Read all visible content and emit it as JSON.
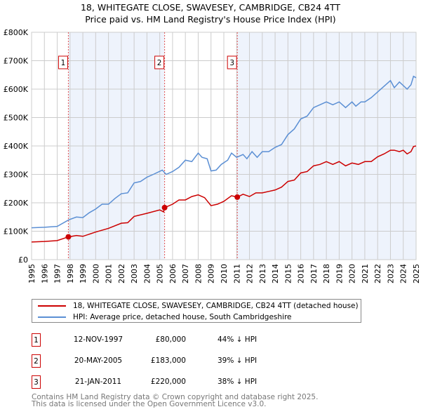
{
  "title_line1": "18, WHITEGATE CLOSE, SWAVESEY, CAMBRIDGE, CB24 4TT",
  "title_line2": "Price paid vs. HM Land Registry's House Price Index (HPI)",
  "chart_data": {
    "type": "line",
    "title": "18, WHITEGATE CLOSE, SWAVESEY, CAMBRIDGE, CB24 4TT - Price paid vs. HM Land Registry's House Price Index (HPI)",
    "xlim": [
      1995,
      2025
    ],
    "ylim": [
      0,
      800000
    ],
    "x_ticks": [
      "1995",
      "1996",
      "1997",
      "1998",
      "1999",
      "2000",
      "2001",
      "2002",
      "2003",
      "2004",
      "2005",
      "2006",
      "2007",
      "2008",
      "2009",
      "2010",
      "2011",
      "2012",
      "2013",
      "2014",
      "2015",
      "2016",
      "2017",
      "2018",
      "2019",
      "2020",
      "2021",
      "2022",
      "2023",
      "2024",
      "2025"
    ],
    "y_ticks": [
      {
        "v": 0,
        "label": "£0"
      },
      {
        "v": 100000,
        "label": "£100K"
      },
      {
        "v": 200000,
        "label": "£200K"
      },
      {
        "v": 300000,
        "label": "£300K"
      },
      {
        "v": 400000,
        "label": "£400K"
      },
      {
        "v": 500000,
        "label": "£500K"
      },
      {
        "v": 600000,
        "label": "£600K"
      },
      {
        "v": 700000,
        "label": "£700K"
      },
      {
        "v": 800000,
        "label": "£800K"
      }
    ],
    "grid": true,
    "series": [
      {
        "name": "18, WHITEGATE CLOSE, SWAVESEY, CAMBRIDGE, CB24 4TT (detached house)",
        "color": "#cc0000",
        "x": [
          1995,
          1996,
          1997,
          1997.87,
          1998.5,
          1999,
          2000,
          2001,
          2002,
          2002.5,
          2003,
          2004,
          2005,
          2005.3,
          2005.38,
          2006,
          2006.5,
          2007,
          2007.5,
          2008,
          2008.5,
          2009,
          2009.5,
          2010,
          2010.6,
          2011.05,
          2011.5,
          2012,
          2012.5,
          2013,
          2013.5,
          2014,
          2014.5,
          2015,
          2015.5,
          2016,
          2016.5,
          2017,
          2017.5,
          2018,
          2018.5,
          2019,
          2019.5,
          2020,
          2020.5,
          2021,
          2021.5,
          2022,
          2022.5,
          2023,
          2023.3,
          2023.7,
          2024,
          2024.3,
          2024.6,
          2024.8,
          2025
        ],
        "y": [
          62000,
          64000,
          67000,
          80000,
          85000,
          82000,
          97000,
          110000,
          128000,
          130000,
          152000,
          163000,
          175000,
          168000,
          183000,
          195000,
          210000,
          210000,
          222000,
          228000,
          218000,
          190000,
          195000,
          205000,
          225000,
          220000,
          230000,
          222000,
          235000,
          235000,
          240000,
          245000,
          255000,
          275000,
          280000,
          305000,
          310000,
          330000,
          335000,
          345000,
          335000,
          345000,
          330000,
          340000,
          335000,
          345000,
          345000,
          362000,
          372000,
          385000,
          385000,
          380000,
          385000,
          372000,
          380000,
          398000,
          400000
        ]
      },
      {
        "name": "HPI: Average price, detached house, South Cambridgeshire",
        "color": "#5b8fd4",
        "x": [
          1995,
          1996,
          1997,
          1997.9,
          1998.5,
          1999,
          1999.5,
          2000,
          2000.5,
          2001,
          2001.5,
          2002,
          2002.5,
          2003,
          2003.5,
          2004,
          2004.5,
          2005.2,
          2005.5,
          2006,
          2006.5,
          2007,
          2007.5,
          2008,
          2008.3,
          2008.7,
          2009,
          2009.4,
          2009.8,
          2010.3,
          2010.6,
          2011,
          2011.5,
          2011.8,
          2012.2,
          2012.6,
          2013,
          2013.5,
          2014,
          2014.5,
          2015,
          2015.5,
          2016,
          2016.5,
          2017,
          2017.5,
          2018,
          2018.5,
          2019,
          2019.5,
          2020,
          2020.3,
          2020.7,
          2021,
          2021.5,
          2022,
          2022.5,
          2023,
          2023.3,
          2023.7,
          2024.3,
          2024.6,
          2024.8,
          2025
        ],
        "y": [
          112000,
          114000,
          117000,
          140000,
          150000,
          148000,
          165000,
          178000,
          195000,
          195000,
          215000,
          232000,
          235000,
          270000,
          275000,
          290000,
          300000,
          315000,
          300000,
          310000,
          325000,
          350000,
          345000,
          375000,
          360000,
          355000,
          312000,
          315000,
          335000,
          350000,
          375000,
          360000,
          370000,
          355000,
          380000,
          360000,
          380000,
          380000,
          395000,
          405000,
          440000,
          460000,
          495000,
          505000,
          535000,
          545000,
          555000,
          545000,
          555000,
          535000,
          555000,
          540000,
          555000,
          555000,
          570000,
          590000,
          610000,
          630000,
          605000,
          625000,
          600000,
          615000,
          645000,
          640000
        ]
      }
    ],
    "sales": [
      {
        "id": "1",
        "x": 1997.87,
        "y": 80000,
        "date": "12-NOV-1997",
        "price": "£80,000",
        "hpi": "44% ↓ HPI"
      },
      {
        "id": "2",
        "x": 2005.38,
        "y": 183000,
        "date": "20-MAY-2005",
        "price": "£183,000",
        "hpi": "39% ↓ HPI"
      },
      {
        "id": "3",
        "x": 2011.05,
        "y": 220000,
        "date": "21-JAN-2011",
        "price": "£220,000",
        "hpi": "38% ↓ HPI"
      }
    ],
    "legend_position": "below"
  },
  "legend": {
    "property": "18, WHITEGATE CLOSE, SWAVESEY, CAMBRIDGE, CB24 4TT (detached house)",
    "hpi": "HPI: Average price, detached house, South Cambridgeshire"
  },
  "footer": {
    "line1": "Contains HM Land Registry data © Crown copyright and database right 2025.",
    "line2": "This data is licensed under the Open Government Licence v3.0."
  }
}
